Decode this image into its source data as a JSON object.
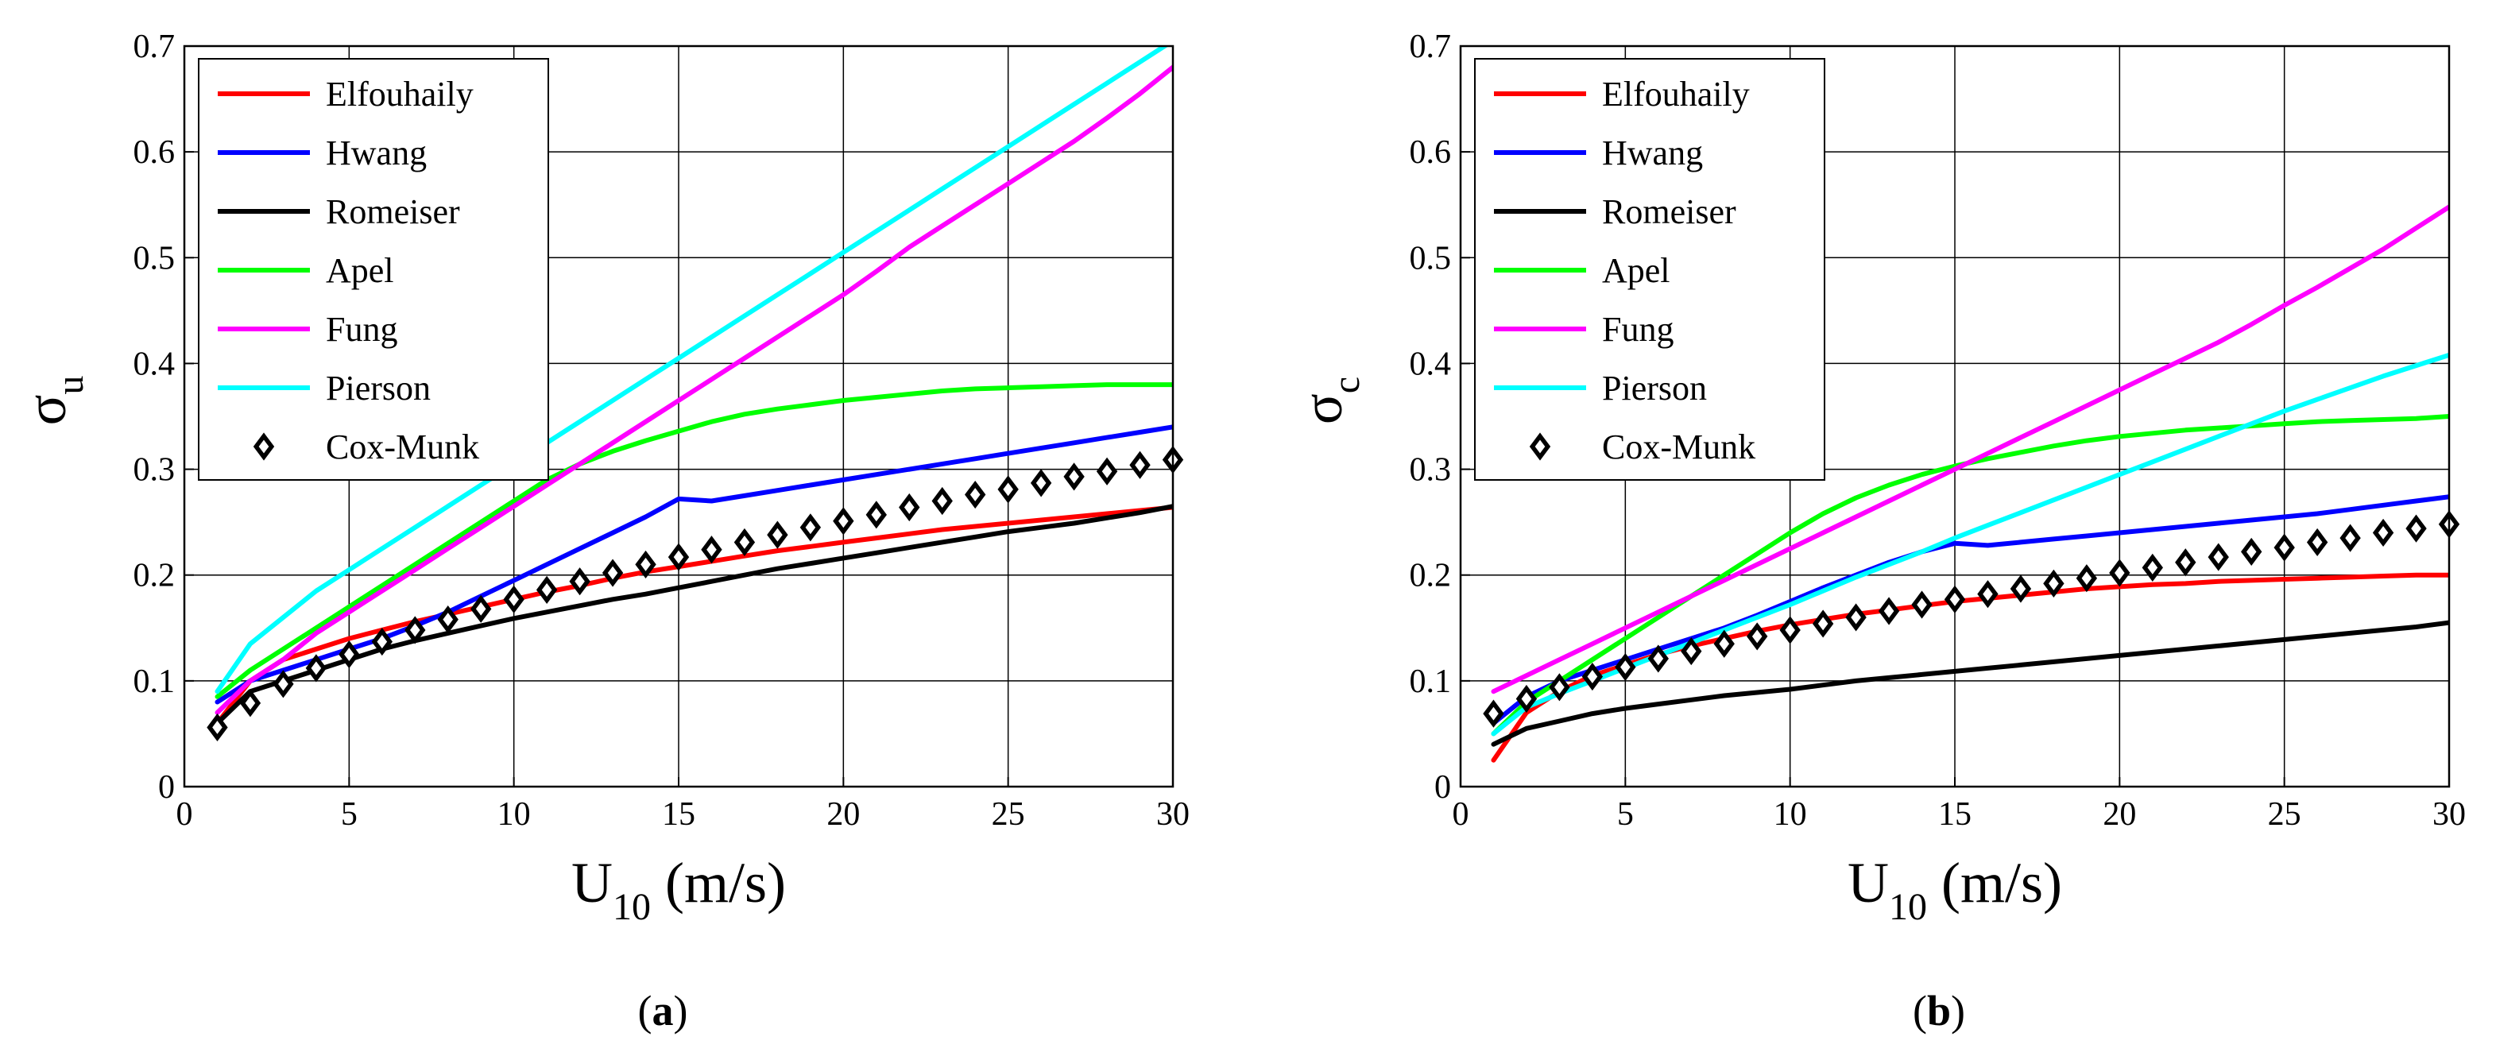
{
  "legend_labels": [
    "Elfouhaily",
    "Hwang",
    "Romeiser",
    "Apel",
    "Fung",
    "Pierson",
    "Cox-Munk"
  ],
  "series_colors": {
    "Elfouhaily": "#ff0000",
    "Hwang": "#0000ff",
    "Romeiser": "#000000",
    "Apel": "#00ff00",
    "Fung": "#ff00ff",
    "Pierson": "#00ffff",
    "Cox-Munk": "#000000"
  },
  "chart_data": [
    {
      "type": "line",
      "panel": {
        "open": "(",
        "letter": "a",
        "close": ")"
      },
      "ylabel": {
        "symbol": "σ",
        "sub": "u"
      },
      "xlabel": {
        "main": "U",
        "sub": "10",
        "unit": " (m/s)"
      },
      "xlim": [
        0,
        30
      ],
      "ylim": [
        0,
        0.7
      ],
      "xticks": [
        "0",
        "5",
        "10",
        "15",
        "20",
        "25",
        "30"
      ],
      "yticks": [
        "0",
        "0.1",
        "0.2",
        "0.3",
        "0.4",
        "0.5",
        "0.6",
        "0.7"
      ],
      "grid": true,
      "legend_position": "top-left",
      "x": [
        1,
        2,
        3,
        4,
        5,
        6,
        7,
        8,
        9,
        10,
        11,
        12,
        13,
        14,
        15,
        16,
        17,
        18,
        19,
        20,
        21,
        22,
        23,
        24,
        25,
        26,
        27,
        28,
        29,
        30
      ],
      "series": [
        {
          "name": "Elfouhaily",
          "marker": "line",
          "values": [
            0.06,
            0.1,
            0.12,
            0.13,
            0.14,
            0.148,
            0.156,
            0.163,
            0.17,
            0.177,
            0.184,
            0.19,
            0.197,
            0.203,
            0.208,
            0.213,
            0.218,
            0.223,
            0.227,
            0.231,
            0.235,
            0.239,
            0.243,
            0.246,
            0.249,
            0.252,
            0.255,
            0.258,
            0.261,
            0.264
          ]
        },
        {
          "name": "Hwang",
          "marker": "line",
          "values": [
            0.08,
            0.1,
            0.11,
            0.12,
            0.13,
            0.14,
            0.152,
            0.165,
            0.18,
            0.195,
            0.21,
            0.225,
            0.24,
            0.255,
            0.272,
            0.27,
            0.275,
            0.28,
            0.285,
            0.29,
            0.295,
            0.3,
            0.305,
            0.31,
            0.315,
            0.32,
            0.325,
            0.33,
            0.335,
            0.34
          ]
        },
        {
          "name": "Romeiser",
          "marker": "line",
          "values": [
            0.06,
            0.09,
            0.1,
            0.11,
            0.12,
            0.13,
            0.138,
            0.145,
            0.152,
            0.159,
            0.165,
            0.171,
            0.177,
            0.182,
            0.188,
            0.194,
            0.2,
            0.206,
            0.211,
            0.216,
            0.221,
            0.226,
            0.231,
            0.236,
            0.241,
            0.245,
            0.249,
            0.254,
            0.259,
            0.265
          ]
        },
        {
          "name": "Apel",
          "marker": "line",
          "values": [
            0.085,
            0.11,
            0.13,
            0.15,
            0.17,
            0.19,
            0.21,
            0.23,
            0.25,
            0.27,
            0.29,
            0.305,
            0.317,
            0.327,
            0.336,
            0.345,
            0.352,
            0.357,
            0.361,
            0.365,
            0.368,
            0.371,
            0.374,
            0.376,
            0.377,
            0.378,
            0.379,
            0.38,
            0.38,
            0.38
          ]
        },
        {
          "name": "Fung",
          "marker": "line",
          "values": [
            0.07,
            0.1,
            0.12,
            0.145,
            0.165,
            0.185,
            0.205,
            0.225,
            0.245,
            0.265,
            0.285,
            0.305,
            0.325,
            0.345,
            0.365,
            0.385,
            0.405,
            0.425,
            0.445,
            0.465,
            0.487,
            0.51,
            0.53,
            0.55,
            0.57,
            0.59,
            0.61,
            0.632,
            0.655,
            0.68
          ]
        },
        {
          "name": "Pierson",
          "marker": "line",
          "values": [
            0.09,
            0.135,
            0.16,
            0.185,
            0.205,
            0.225,
            0.245,
            0.265,
            0.285,
            0.305,
            0.325,
            0.345,
            0.365,
            0.385,
            0.405,
            0.425,
            0.445,
            0.465,
            0.485,
            0.505,
            0.525,
            0.545,
            0.565,
            0.585,
            0.605,
            0.625,
            0.645,
            0.665,
            0.685,
            0.705
          ]
        },
        {
          "name": "Cox-Munk",
          "marker": "diamond",
          "values": [
            0.056,
            0.079,
            0.097,
            0.112,
            0.125,
            0.137,
            0.148,
            0.158,
            0.168,
            0.177,
            0.186,
            0.194,
            0.202,
            0.21,
            0.217,
            0.224,
            0.231,
            0.238,
            0.245,
            0.251,
            0.257,
            0.264,
            0.27,
            0.276,
            0.281,
            0.287,
            0.293,
            0.298,
            0.304,
            0.309
          ]
        }
      ]
    },
    {
      "type": "line",
      "panel": {
        "open": "(",
        "letter": "b",
        "close": ")"
      },
      "ylabel": {
        "symbol": "σ",
        "sub": "c"
      },
      "xlabel": {
        "main": "U",
        "sub": "10",
        "unit": " (m/s)"
      },
      "xlim": [
        0,
        30
      ],
      "ylim": [
        0,
        0.7
      ],
      "xticks": [
        "0",
        "5",
        "10",
        "15",
        "20",
        "25",
        "30"
      ],
      "yticks": [
        "0",
        "0.1",
        "0.2",
        "0.3",
        "0.4",
        "0.5",
        "0.6",
        "0.7"
      ],
      "grid": true,
      "legend_position": "top-left",
      "x": [
        1,
        2,
        3,
        4,
        5,
        6,
        7,
        8,
        9,
        10,
        11,
        12,
        13,
        14,
        15,
        16,
        17,
        18,
        19,
        20,
        21,
        22,
        23,
        24,
        25,
        26,
        27,
        28,
        29,
        30
      ],
      "series": [
        {
          "name": "Elfouhaily",
          "marker": "line",
          "values": [
            0.025,
            0.07,
            0.09,
            0.105,
            0.115,
            0.125,
            0.133,
            0.14,
            0.147,
            0.153,
            0.158,
            0.163,
            0.167,
            0.171,
            0.175,
            0.178,
            0.181,
            0.184,
            0.187,
            0.189,
            0.191,
            0.192,
            0.194,
            0.195,
            0.196,
            0.197,
            0.198,
            0.199,
            0.2,
            0.2
          ]
        },
        {
          "name": "Hwang",
          "marker": "line",
          "values": [
            0.06,
            0.085,
            0.1,
            0.11,
            0.12,
            0.13,
            0.14,
            0.15,
            0.162,
            0.175,
            0.188,
            0.2,
            0.212,
            0.222,
            0.23,
            0.228,
            0.231,
            0.234,
            0.237,
            0.24,
            0.243,
            0.246,
            0.249,
            0.252,
            0.255,
            0.258,
            0.262,
            0.266,
            0.27,
            0.274
          ]
        },
        {
          "name": "Romeiser",
          "marker": "line",
          "values": [
            0.04,
            0.055,
            0.062,
            0.069,
            0.074,
            0.078,
            0.082,
            0.086,
            0.089,
            0.092,
            0.096,
            0.1,
            0.103,
            0.106,
            0.109,
            0.112,
            0.115,
            0.118,
            0.121,
            0.124,
            0.127,
            0.13,
            0.133,
            0.136,
            0.139,
            0.142,
            0.145,
            0.148,
            0.151,
            0.155
          ]
        },
        {
          "name": "Apel",
          "marker": "line",
          "values": [
            0.05,
            0.08,
            0.1,
            0.12,
            0.14,
            0.16,
            0.18,
            0.2,
            0.22,
            0.24,
            0.258,
            0.273,
            0.285,
            0.295,
            0.303,
            0.31,
            0.316,
            0.322,
            0.327,
            0.331,
            0.334,
            0.337,
            0.339,
            0.341,
            0.343,
            0.345,
            0.346,
            0.347,
            0.348,
            0.35
          ]
        },
        {
          "name": "Fung",
          "marker": "line",
          "values": [
            0.09,
            0.105,
            0.12,
            0.135,
            0.15,
            0.165,
            0.18,
            0.195,
            0.21,
            0.225,
            0.24,
            0.255,
            0.27,
            0.285,
            0.3,
            0.315,
            0.33,
            0.345,
            0.36,
            0.375,
            0.39,
            0.405,
            0.42,
            0.437,
            0.455,
            0.472,
            0.49,
            0.508,
            0.528,
            0.548
          ]
        },
        {
          "name": "Pierson",
          "marker": "line",
          "values": [
            0.05,
            0.075,
            0.088,
            0.1,
            0.112,
            0.124,
            0.136,
            0.148,
            0.16,
            0.172,
            0.185,
            0.198,
            0.21,
            0.222,
            0.235,
            0.247,
            0.259,
            0.271,
            0.283,
            0.295,
            0.307,
            0.319,
            0.331,
            0.343,
            0.355,
            0.366,
            0.377,
            0.388,
            0.398,
            0.408
          ]
        },
        {
          "name": "Cox-Munk",
          "marker": "diamond",
          "values": [
            0.069,
            0.083,
            0.094,
            0.104,
            0.113,
            0.121,
            0.128,
            0.135,
            0.142,
            0.148,
            0.154,
            0.16,
            0.166,
            0.172,
            0.177,
            0.182,
            0.187,
            0.192,
            0.197,
            0.202,
            0.207,
            0.212,
            0.217,
            0.222,
            0.226,
            0.231,
            0.235,
            0.24,
            0.244,
            0.248
          ]
        }
      ]
    }
  ]
}
